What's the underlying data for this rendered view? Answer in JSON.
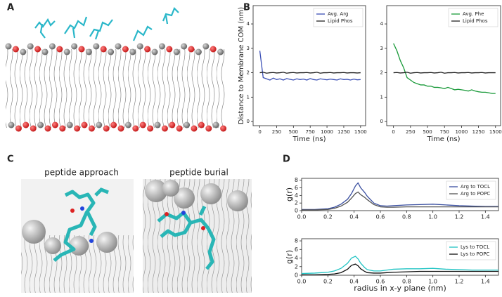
{
  "panel_labels": [
    "A",
    "B",
    "C",
    "D"
  ],
  "panel_c": {
    "captions": [
      "peptide approach",
      "peptide burial"
    ]
  },
  "chart_data": [
    {
      "type": "line",
      "y_label": "Distance to Membrane COM (nm)",
      "x_label": "Time (ns)",
      "xlim": [
        -100,
        1575
      ],
      "xticks": [
        0,
        250,
        500,
        750,
        1000,
        1250,
        1500
      ],
      "ylim": [
        -0.17,
        4.75
      ],
      "yticks": [
        0,
        1,
        2,
        3,
        4
      ],
      "legend": "upper right",
      "x": [
        0,
        50,
        100,
        150,
        200,
        250,
        300,
        350,
        400,
        450,
        500,
        550,
        600,
        650,
        700,
        750,
        800,
        850,
        900,
        950,
        1000,
        1050,
        1100,
        1150,
        1200,
        1250,
        1300,
        1350,
        1400,
        1450,
        1500
      ],
      "series": [
        {
          "name": "Avg. Arg",
          "color": "#3a4fb5",
          "values": [
            2.9,
            1.8,
            1.75,
            1.7,
            1.78,
            1.72,
            1.75,
            1.7,
            1.76,
            1.73,
            1.7,
            1.75,
            1.72,
            1.74,
            1.7,
            1.76,
            1.72,
            1.7,
            1.75,
            1.73,
            1.71,
            1.74,
            1.72,
            1.7,
            1.75,
            1.72,
            1.73,
            1.7,
            1.74,
            1.71,
            1.72
          ]
        },
        {
          "name": "Lipid Phos",
          "color": "#222222",
          "values": [
            2.0,
            2.02,
            1.98,
            2.0,
            2.01,
            1.99,
            2.0,
            2.02,
            1.98,
            2.0,
            2.01,
            1.99,
            2.0,
            2.0,
            2.01,
            1.99,
            2.0,
            2.02,
            1.98,
            2.0,
            2.0,
            2.01,
            1.99,
            2.0,
            2.0,
            2.01,
            1.99,
            2.0,
            2.0,
            1.99,
            2.0
          ]
        }
      ]
    },
    {
      "type": "line",
      "x_label": "Time (ns)",
      "xlim": [
        -100,
        1575
      ],
      "xticks": [
        0,
        250,
        500,
        750,
        1000,
        1250,
        1500
      ],
      "ylim": [
        -0.17,
        4.75
      ],
      "yticks": [
        0,
        1,
        2,
        3,
        4
      ],
      "legend": "upper right",
      "x": [
        0,
        50,
        100,
        150,
        200,
        250,
        300,
        350,
        400,
        450,
        500,
        550,
        600,
        650,
        700,
        750,
        800,
        850,
        900,
        950,
        1000,
        1050,
        1100,
        1150,
        1200,
        1250,
        1300,
        1350,
        1400,
        1450,
        1500
      ],
      "series": [
        {
          "name": "Avg. Phe",
          "color": "#1a9a3a",
          "values": [
            3.2,
            2.9,
            2.5,
            2.2,
            1.8,
            1.7,
            1.6,
            1.55,
            1.5,
            1.5,
            1.45,
            1.45,
            1.4,
            1.4,
            1.38,
            1.35,
            1.4,
            1.35,
            1.3,
            1.32,
            1.3,
            1.28,
            1.25,
            1.3,
            1.25,
            1.22,
            1.2,
            1.2,
            1.18,
            1.15,
            1.15
          ]
        },
        {
          "name": "Lipid Phos",
          "color": "#222222",
          "values": [
            2.0,
            2.01,
            1.99,
            2.0,
            2.02,
            1.98,
            2.0,
            2.01,
            1.99,
            2.0,
            2.0,
            2.01,
            1.99,
            2.0,
            2.02,
            1.98,
            2.0,
            2.0,
            2.01,
            1.99,
            2.0,
            2.0,
            2.01,
            1.99,
            2.0,
            2.0,
            2.01,
            1.99,
            2.0,
            2.0,
            2.0
          ]
        }
      ]
    },
    {
      "type": "line",
      "y_label": "g(r)",
      "xlim": [
        0,
        1.5
      ],
      "xticks": [
        {
          "value": 0,
          "label": "0.0"
        },
        0.2,
        0.4,
        0.6,
        0.8,
        {
          "value": 1,
          "label": "1.0"
        },
        1.2,
        1.4
      ],
      "ylim": [
        0,
        8.5
      ],
      "yticks": [
        0,
        2,
        4,
        6,
        8
      ],
      "legend": "upper right",
      "x": [
        0,
        0.1,
        0.2,
        0.25,
        0.3,
        0.35,
        0.38,
        0.41,
        0.43,
        0.45,
        0.48,
        0.5,
        0.55,
        0.6,
        0.65,
        0.7,
        0.8,
        0.9,
        1.0,
        1.1,
        1.2,
        1.3,
        1.4,
        1.5
      ],
      "series": [
        {
          "name": "Arg to TOCL",
          "color": "#3a4fa0",
          "values": [
            0.3,
            0.3,
            0.5,
            0.9,
            1.7,
            3.0,
            4.5,
            6.5,
            7.3,
            6.0,
            4.8,
            3.8,
            2.0,
            1.3,
            1.2,
            1.3,
            1.5,
            1.6,
            1.7,
            1.5,
            1.3,
            1.2,
            1.1,
            1.1
          ]
        },
        {
          "name": "Arg to POPC",
          "color": "#555555",
          "values": [
            0.2,
            0.2,
            0.3,
            0.6,
            1.2,
            2.2,
            3.3,
            4.5,
            4.9,
            4.2,
            3.5,
            2.9,
            1.6,
            1.0,
            0.9,
            0.9,
            1.0,
            1.0,
            1.0,
            1.0,
            1.0,
            1.0,
            1.0,
            1.0
          ]
        }
      ]
    },
    {
      "type": "line",
      "y_label": "g(r)",
      "x_label": "radius in x-y plane (nm)",
      "xlim": [
        0,
        1.5
      ],
      "xticks": [
        {
          "value": 0,
          "label": "0.0"
        },
        0.2,
        0.4,
        0.6,
        0.8,
        {
          "value": 1,
          "label": "1.0"
        },
        1.2,
        1.4
      ],
      "ylim": [
        0,
        8.5
      ],
      "yticks": [
        0,
        2,
        4,
        6,
        8
      ],
      "legend": "upper right",
      "x": [
        0,
        0.1,
        0.2,
        0.25,
        0.3,
        0.35,
        0.38,
        0.41,
        0.43,
        0.45,
        0.48,
        0.5,
        0.55,
        0.6,
        0.65,
        0.7,
        0.8,
        0.9,
        1.0,
        1.1,
        1.2,
        1.3,
        1.4,
        1.5
      ],
      "series": [
        {
          "name": "Lys to TOCL",
          "color": "#22c4c4",
          "values": [
            0.4,
            0.5,
            0.7,
            1.0,
            1.6,
            2.8,
            4.0,
            4.4,
            3.8,
            2.8,
            1.8,
            1.3,
            1.0,
            1.0,
            1.2,
            1.4,
            1.5,
            1.5,
            1.6,
            1.4,
            1.3,
            1.2,
            1.2,
            1.2
          ]
        },
        {
          "name": "Lys to POPC",
          "color": "#111111",
          "values": [
            0.1,
            0.1,
            0.2,
            0.3,
            0.6,
            1.4,
            2.3,
            2.6,
            2.2,
            1.5,
            0.9,
            0.6,
            0.5,
            0.5,
            0.6,
            0.7,
            0.8,
            0.9,
            0.9,
            0.9,
            0.9,
            0.9,
            0.9,
            0.9
          ]
        }
      ]
    }
  ]
}
